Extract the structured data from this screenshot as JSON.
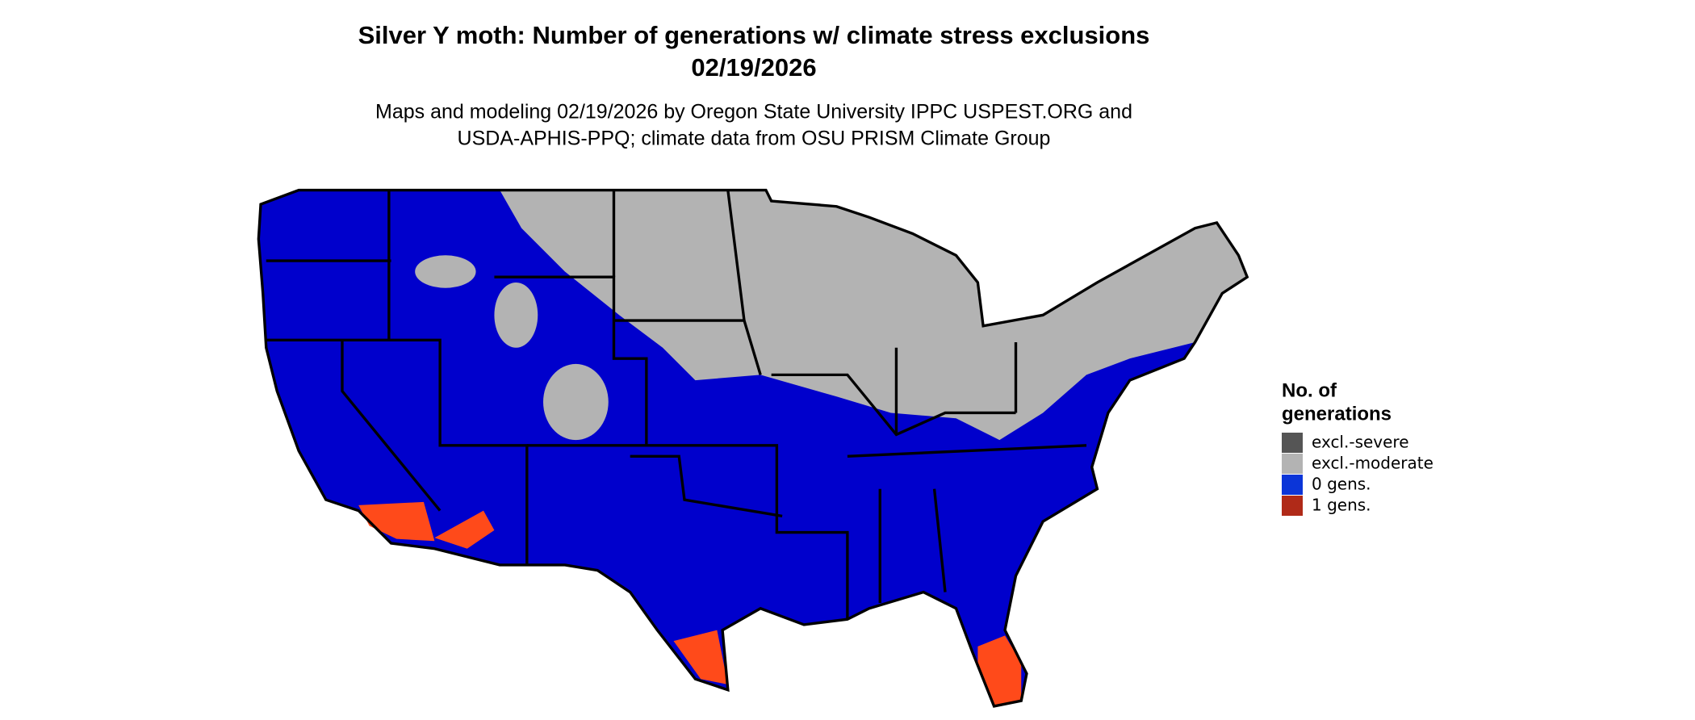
{
  "header": {
    "title": [
      "Silver Y moth: Number of generations w/ climate stress exclusions",
      "02/19/2026"
    ],
    "subtitle": [
      "Maps and modeling 02/19/2026 by Oregon State University IPPC USPEST.ORG and",
      "USDA-APHIS-PPQ; climate data from OSU PRISM Climate Group"
    ]
  },
  "legend": {
    "title": [
      "No. of",
      "generations"
    ],
    "items": [
      {
        "label": "excl.-severe",
        "color": "#555555"
      },
      {
        "label": "excl.-moderate",
        "color": "#b3b3b3"
      },
      {
        "label": "0 gens.",
        "color": "#0b35d8"
      },
      {
        "label": "1 gens.",
        "color": "#b02a18"
      }
    ]
  }
}
